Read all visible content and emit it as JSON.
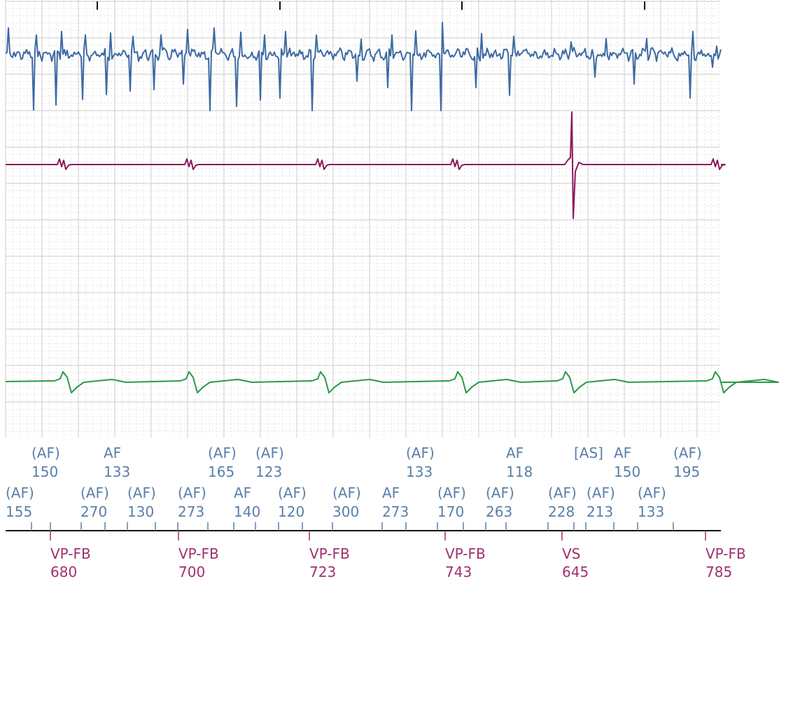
{
  "chart_data": {
    "type": "line",
    "title": "",
    "grid": true,
    "colors": {
      "atrial_trace": "#3b6aa3",
      "ventricular_trace": "#8b1a5c",
      "shock_trace": "#2a9a48",
      "atrial_marker": "#5a7fa8",
      "ventricular_marker": "#a0306e",
      "grid": "#d4d4d4",
      "axis": "#111111"
    },
    "series": [
      {
        "channel": "atrial-egm"
      },
      {
        "channel": "ventricular-egm"
      },
      {
        "channel": "shock-egm"
      }
    ],
    "atrial_markers": {
      "upper_row": [
        {
          "label": "(AF)",
          "value": "150"
        },
        {
          "label": "AF",
          "value": "133"
        },
        {
          "label": "(AF)",
          "value": "165"
        },
        {
          "label": "(AF)",
          "value": "123"
        },
        {
          "label": "(AF)",
          "value": "133"
        },
        {
          "label": "AF",
          "value": "118"
        },
        {
          "label": "[AS]",
          "value": ""
        },
        {
          "label": "AF",
          "value": "150"
        },
        {
          "label": "(AF)",
          "value": "195"
        }
      ],
      "lower_row": [
        {
          "label": "(AF)",
          "value": "155"
        },
        {
          "label": "(AF)",
          "value": "270"
        },
        {
          "label": "(AF)",
          "value": "130"
        },
        {
          "label": "(AF)",
          "value": "273"
        },
        {
          "label": "AF",
          "value": "140"
        },
        {
          "label": "(AF)",
          "value": "120"
        },
        {
          "label": "(AF)",
          "value": "300"
        },
        {
          "label": "AF",
          "value": "273"
        },
        {
          "label": "(AF)",
          "value": "170"
        },
        {
          "label": "(AF)",
          "value": "263"
        },
        {
          "label": "(AF)",
          "value": "228"
        },
        {
          "label": "(AF)",
          "value": "213"
        },
        {
          "label": "(AF)",
          "value": "133"
        }
      ]
    },
    "ventricular_markers": [
      {
        "label": "VP-FB",
        "value": "680"
      },
      {
        "label": "VP-FB",
        "value": "700"
      },
      {
        "label": "VP-FB",
        "value": "723"
      },
      {
        "label": "VP-FB",
        "value": "743"
      },
      {
        "label": "VS",
        "value": "645"
      },
      {
        "label": "VP-FB",
        "value": "785"
      }
    ]
  }
}
